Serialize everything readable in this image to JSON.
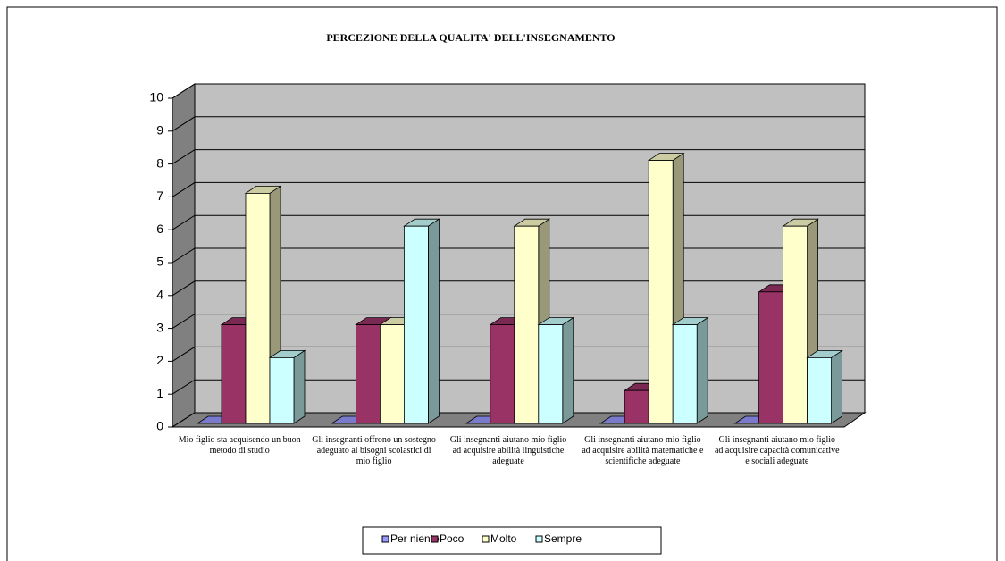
{
  "chart_data": {
    "type": "bar3d",
    "title": "PERCEZIONE DELLA QUALITA' DELL'INSEGNAMENTO",
    "categories": [
      "Mio figlio sta acquisendo un buon metodo di studio",
      "Gli insegnanti offrono un sostegno adeguato ai bisogni scolastici di mio figlio",
      "Gli insegnanti aiutano mio figlio ad acquisire abilità linguistiche adeguate",
      "Gli insegnanti aiutano mio figlio ad acquisire abilità matematiche e scientifiche adeguate",
      "Gli insegnanti aiutano mio figlio ad acquisire capacità comunicative e sociali adeguate"
    ],
    "series": [
      {
        "name": "Per niente",
        "color": "#9999ff",
        "values": [
          0,
          0,
          0,
          0,
          0
        ]
      },
      {
        "name": "Poco",
        "color": "#993366",
        "values": [
          3,
          3,
          3,
          1,
          4
        ]
      },
      {
        "name": "Molto",
        "color": "#ffffcc",
        "values": [
          7,
          3,
          6,
          8,
          6
        ]
      },
      {
        "name": "Sempre",
        "color": "#ccffff",
        "values": [
          2,
          6,
          3,
          3,
          2
        ]
      }
    ],
    "ylim": [
      0,
      10
    ],
    "yticks": [
      0,
      1,
      2,
      3,
      4,
      5,
      6,
      7,
      8,
      9,
      10
    ],
    "grid": true,
    "legend": "bottom"
  }
}
